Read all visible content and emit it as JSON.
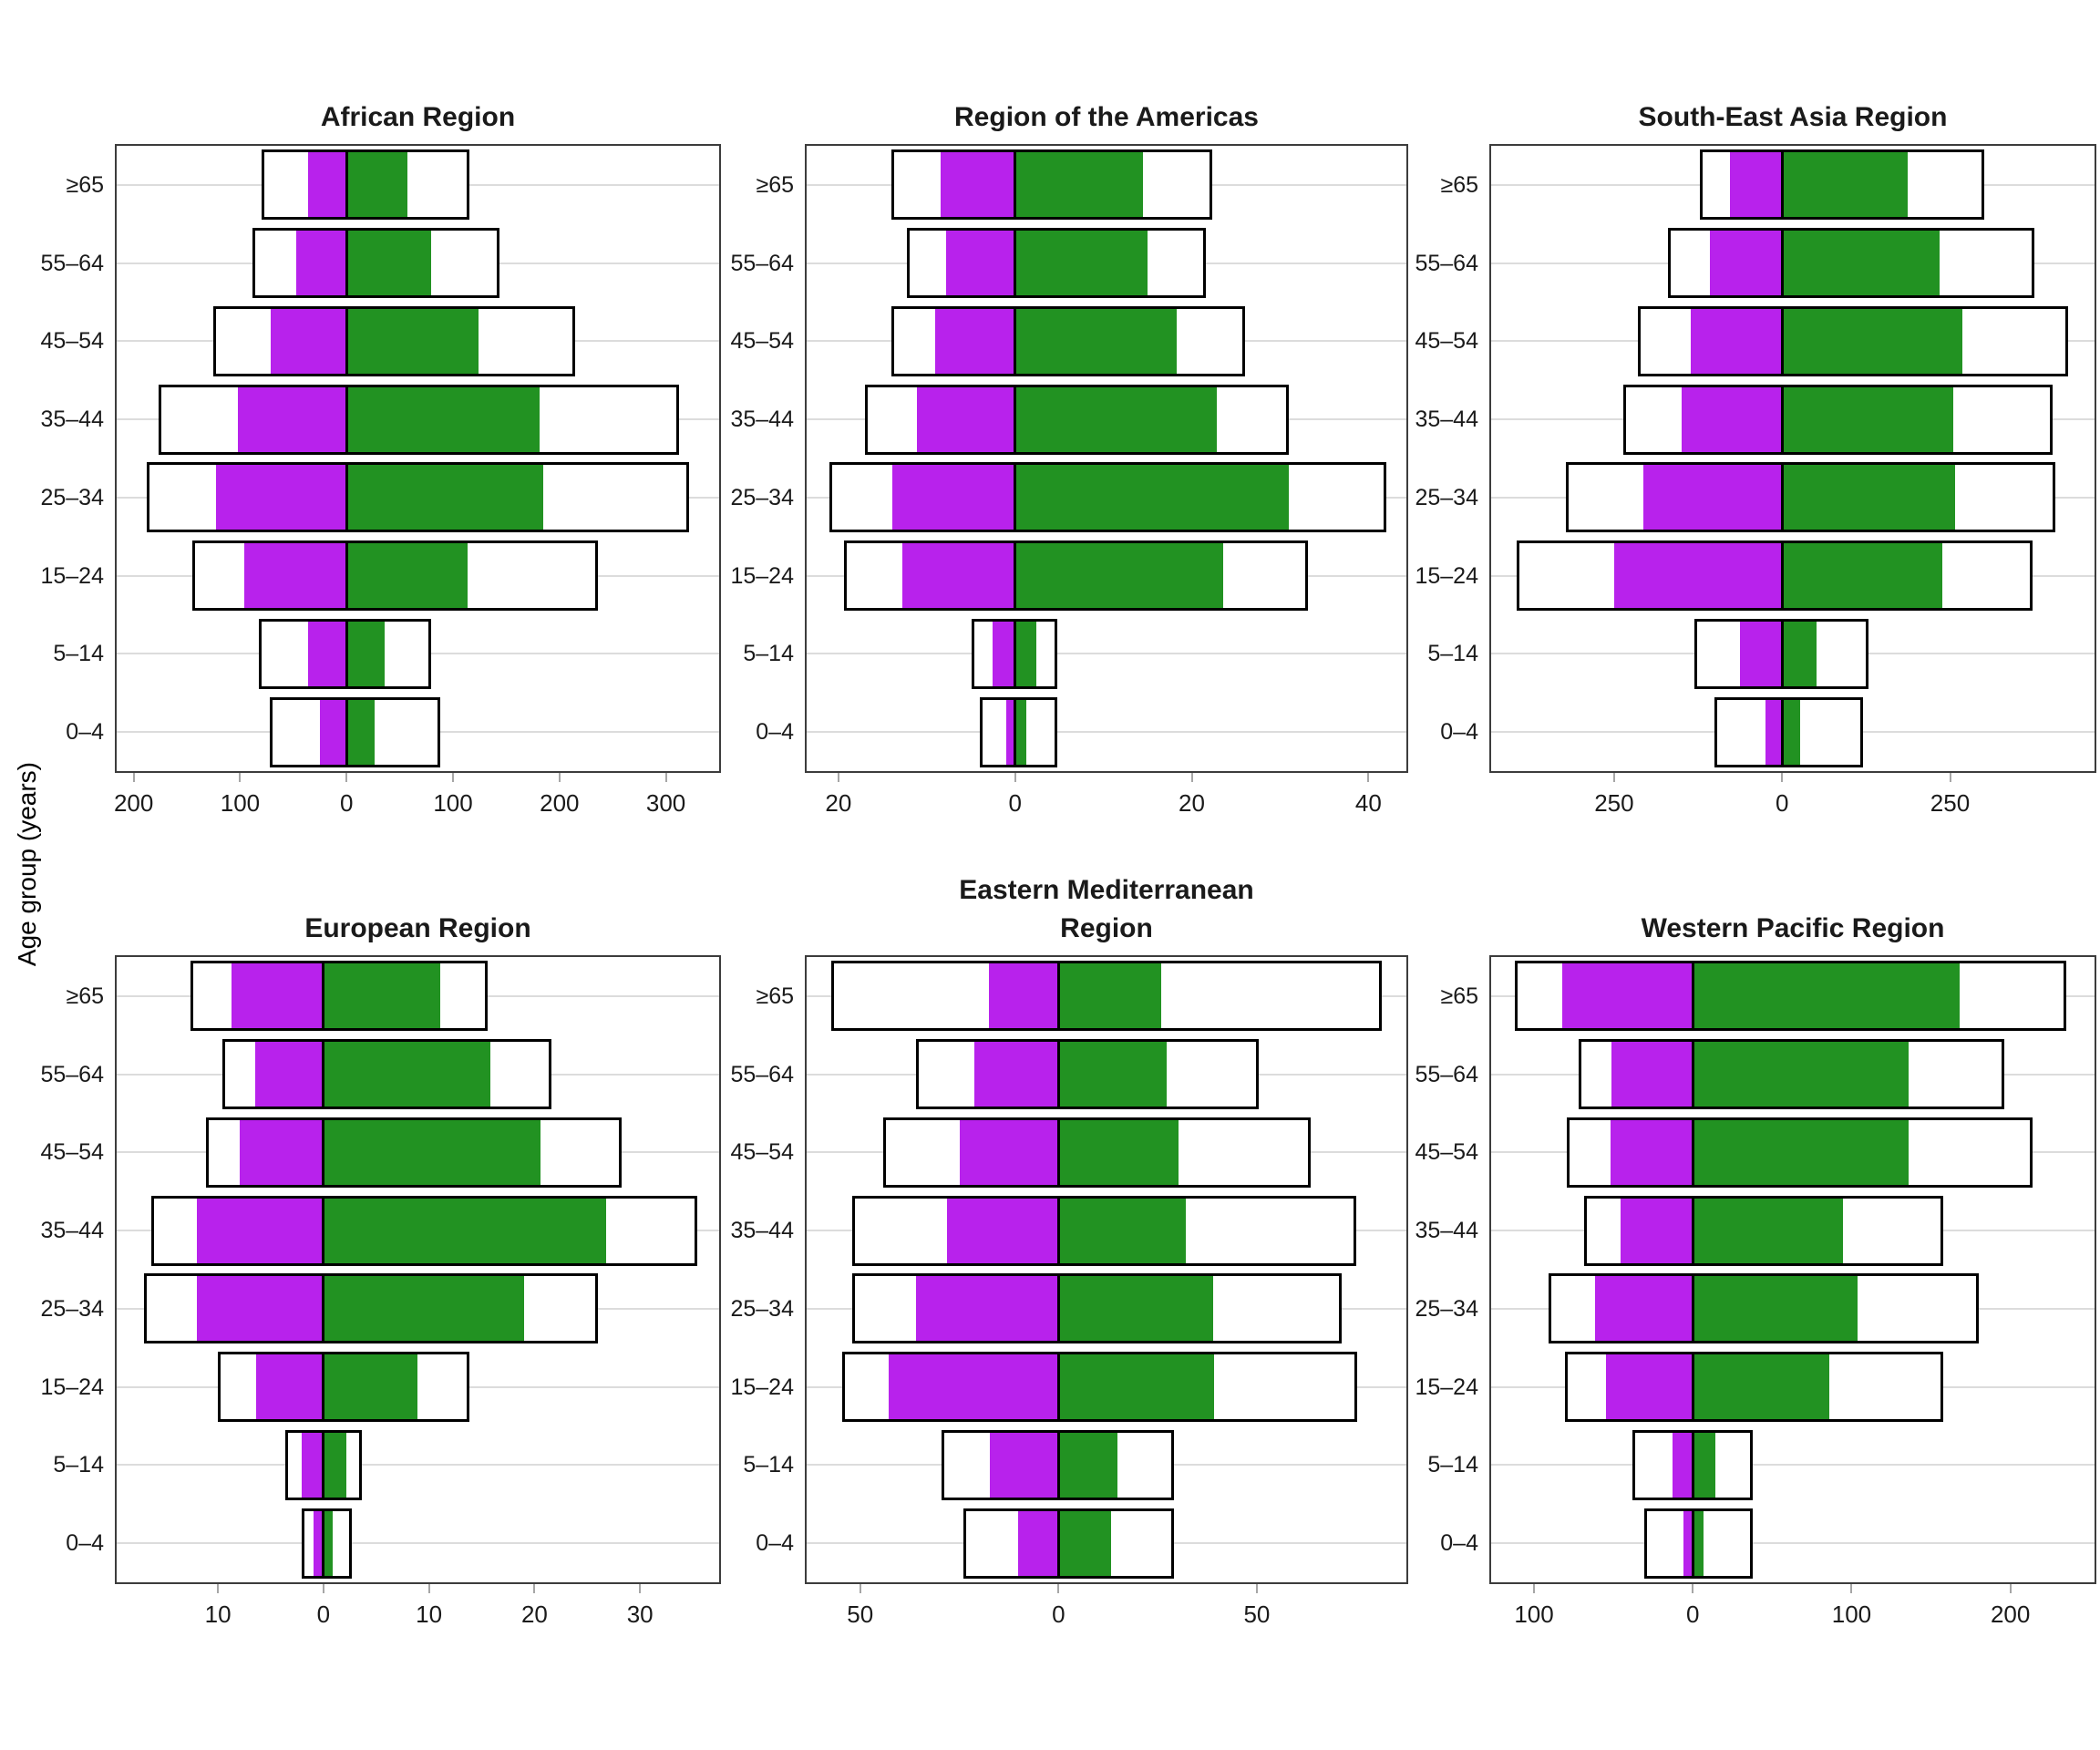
{
  "figure": {
    "y_axis_label": "Age group (years)",
    "age_groups_top_to_bottom": [
      "≥65",
      "55–64",
      "45–54",
      "35–44",
      "25–34",
      "15–24",
      "5–14",
      "0–4"
    ],
    "legend": "none visible"
  },
  "colors": {
    "female_notified": "#B822EC",
    "male_notified": "#229222",
    "estimate_outline": "#000000",
    "panel_border": "#3C3C3C",
    "gridline": "#DCDCDC",
    "tick_mark": "#A6A6A6"
  },
  "chart_data": [
    {
      "type": "bar",
      "subtype": "population-pyramid",
      "title": "African Region",
      "title_lines": [
        "African Region"
      ],
      "orientation": "horizontal",
      "xlim": [
        -216,
        350
      ],
      "x_ticks": [
        {
          "value": -200,
          "label": "200"
        },
        {
          "value": -100,
          "label": "100"
        },
        {
          "value": 0,
          "label": "0"
        },
        {
          "value": 100,
          "label": "100"
        },
        {
          "value": 200,
          "label": "200"
        },
        {
          "value": 300,
          "label": "300"
        }
      ],
      "rows_top_to_bottom": [
        {
          "age": "≥65",
          "est_female": 80,
          "notif_female": 36,
          "notif_male": 57,
          "est_male": 115
        },
        {
          "age": "55–64",
          "est_female": 88,
          "notif_female": 47,
          "notif_male": 79,
          "est_male": 144
        },
        {
          "age": "45–54",
          "est_female": 125,
          "notif_female": 71,
          "notif_male": 124,
          "est_male": 215
        },
        {
          "age": "35–44",
          "est_female": 177,
          "notif_female": 102,
          "notif_male": 181,
          "est_male": 312
        },
        {
          "age": "25–34",
          "est_female": 188,
          "notif_female": 123,
          "notif_male": 185,
          "est_male": 322
        },
        {
          "age": "15–24",
          "est_female": 145,
          "notif_female": 96,
          "notif_male": 114,
          "est_male": 236
        },
        {
          "age": "5–14",
          "est_female": 82,
          "notif_female": 36,
          "notif_male": 36,
          "est_male": 79
        },
        {
          "age": "0–4",
          "est_female": 72,
          "notif_female": 25,
          "notif_male": 26,
          "est_male": 88
        }
      ]
    },
    {
      "type": "bar",
      "subtype": "population-pyramid",
      "title": "Region of the Americas",
      "title_lines": [
        "Region of the Americas"
      ],
      "orientation": "horizontal",
      "xlim": [
        -23.6,
        44.3
      ],
      "x_ticks": [
        {
          "value": -20,
          "label": "20"
        },
        {
          "value": 0,
          "label": "0"
        },
        {
          "value": 20,
          "label": "20"
        },
        {
          "value": 40,
          "label": "40"
        }
      ],
      "rows_top_to_bottom": [
        {
          "age": "≥65",
          "est_female": 14,
          "notif_female": 8.4,
          "notif_male": 14.5,
          "est_male": 22.3
        },
        {
          "age": "55–64",
          "est_female": 12.3,
          "notif_female": 7.8,
          "notif_male": 15,
          "est_male": 21.6
        },
        {
          "age": "45–54",
          "est_female": 14,
          "notif_female": 9.1,
          "notif_male": 18.3,
          "est_male": 26
        },
        {
          "age": "35–44",
          "est_female": 17,
          "notif_female": 11.1,
          "notif_male": 22.8,
          "est_male": 31
        },
        {
          "age": "25–34",
          "est_female": 21,
          "notif_female": 13.9,
          "notif_male": 31,
          "est_male": 42
        },
        {
          "age": "15–24",
          "est_female": 19.4,
          "notif_female": 12.8,
          "notif_male": 23.6,
          "est_male": 33.2
        },
        {
          "age": "5–14",
          "est_female": 4.9,
          "notif_female": 2.5,
          "notif_male": 2.4,
          "est_male": 4.8
        },
        {
          "age": "0–4",
          "est_female": 4,
          "notif_female": 1,
          "notif_male": 1.3,
          "est_male": 4.8
        }
      ]
    },
    {
      "type": "bar",
      "subtype": "population-pyramid",
      "title": "South-East Asia Region",
      "title_lines": [
        "South-East Asia Region"
      ],
      "orientation": "horizontal",
      "xlim": [
        -433,
        465
      ],
      "x_ticks": [
        {
          "value": -250,
          "label": "250"
        },
        {
          "value": 0,
          "label": "0"
        },
        {
          "value": 250,
          "label": "250"
        }
      ],
      "rows_top_to_bottom": [
        {
          "age": "≥65",
          "est_female": 122,
          "notif_female": 78,
          "notif_male": 187,
          "est_male": 301
        },
        {
          "age": "55–64",
          "est_female": 170,
          "notif_female": 107,
          "notif_male": 235,
          "est_male": 375
        },
        {
          "age": "45–54",
          "est_female": 215,
          "notif_female": 136,
          "notif_male": 268,
          "est_male": 425
        },
        {
          "age": "35–44",
          "est_female": 236,
          "notif_female": 149,
          "notif_male": 255,
          "est_male": 403
        },
        {
          "age": "25–34",
          "est_female": 322,
          "notif_female": 206,
          "notif_male": 258,
          "est_male": 407
        },
        {
          "age": "15–24",
          "est_female": 395,
          "notif_female": 250,
          "notif_male": 239,
          "est_male": 373
        },
        {
          "age": "5–14",
          "est_female": 131,
          "notif_female": 62,
          "notif_male": 51,
          "est_male": 129
        },
        {
          "age": "0–4",
          "est_female": 100,
          "notif_female": 25,
          "notif_male": 27,
          "est_male": 120
        }
      ]
    },
    {
      "type": "bar",
      "subtype": "population-pyramid",
      "title": "European Region",
      "title_lines": [
        "European Region"
      ],
      "orientation": "horizontal",
      "xlim": [
        -19.6,
        37.5
      ],
      "x_ticks": [
        {
          "value": -10,
          "label": "10"
        },
        {
          "value": 0,
          "label": "0"
        },
        {
          "value": 10,
          "label": "10"
        },
        {
          "value": 20,
          "label": "20"
        },
        {
          "value": 30,
          "label": "30"
        }
      ],
      "rows_top_to_bottom": [
        {
          "age": "≥65",
          "est_female": 12.6,
          "notif_female": 8.7,
          "notif_male": 11.1,
          "est_male": 15.6
        },
        {
          "age": "55–64",
          "est_female": 9.6,
          "notif_female": 6.5,
          "notif_male": 15.8,
          "est_male": 21.6
        },
        {
          "age": "45–54",
          "est_female": 11.1,
          "notif_female": 7.9,
          "notif_male": 20.6,
          "est_male": 28.3
        },
        {
          "age": "35–44",
          "est_female": 16.3,
          "notif_female": 12,
          "notif_male": 26.8,
          "est_male": 35.4
        },
        {
          "age": "25–34",
          "est_female": 17,
          "notif_female": 12,
          "notif_male": 19,
          "est_male": 26
        },
        {
          "age": "15–24",
          "est_female": 10,
          "notif_female": 6.4,
          "notif_male": 8.9,
          "est_male": 13.8
        },
        {
          "age": "5–14",
          "est_female": 3.6,
          "notif_female": 2.1,
          "notif_male": 2.2,
          "est_male": 3.6
        },
        {
          "age": "0–4",
          "est_female": 2.1,
          "notif_female": 0.95,
          "notif_male": 0.9,
          "est_male": 2.7
        }
      ]
    },
    {
      "type": "bar",
      "subtype": "population-pyramid",
      "title": "Eastern Mediterranean Region",
      "title_lines": [
        "Eastern Mediterranean",
        "Region"
      ],
      "orientation": "horizontal",
      "xlim": [
        -63.5,
        87.7
      ],
      "x_ticks": [
        {
          "value": -50,
          "label": "50"
        },
        {
          "value": 0,
          "label": "0"
        },
        {
          "value": 50,
          "label": "50"
        }
      ],
      "rows_top_to_bottom": [
        {
          "age": "≥65",
          "est_female": 57.3,
          "notif_female": 17.6,
          "notif_male": 25.9,
          "est_male": 81.5
        },
        {
          "age": "55–64",
          "est_female": 35.9,
          "notif_female": 21.2,
          "notif_male": 27.2,
          "est_male": 50.4
        },
        {
          "age": "45–54",
          "est_female": 44.2,
          "notif_female": 24.8,
          "notif_male": 30.2,
          "est_male": 63.6
        },
        {
          "age": "35–44",
          "est_female": 52,
          "notif_female": 28.2,
          "notif_male": 32.1,
          "est_male": 75
        },
        {
          "age": "25–34",
          "est_female": 52,
          "notif_female": 36,
          "notif_male": 39,
          "est_male": 71.4
        },
        {
          "age": "15–24",
          "est_female": 54.5,
          "notif_female": 42.9,
          "notif_male": 39.3,
          "est_male": 75.3
        },
        {
          "age": "5–14",
          "est_female": 29.5,
          "notif_female": 17.3,
          "notif_male": 14.8,
          "est_male": 29
        },
        {
          "age": "0–4",
          "est_female": 24,
          "notif_female": 10.3,
          "notif_male": 13.2,
          "est_male": 29
        }
      ]
    },
    {
      "type": "bar",
      "subtype": "population-pyramid",
      "title": "Western Pacific Region",
      "title_lines": [
        "Western Pacific Region"
      ],
      "orientation": "horizontal",
      "xlim": [
        -127,
        253
      ],
      "x_ticks": [
        {
          "value": -100,
          "label": "100"
        },
        {
          "value": 0,
          "label": "0"
        },
        {
          "value": 100,
          "label": "100"
        },
        {
          "value": 200,
          "label": "200"
        }
      ],
      "rows_top_to_bottom": [
        {
          "age": "≥65",
          "est_female": 112,
          "notif_female": 82,
          "notif_male": 168,
          "est_male": 235
        },
        {
          "age": "55–64",
          "est_female": 72,
          "notif_female": 51,
          "notif_male": 136,
          "est_male": 196
        },
        {
          "age": "45–54",
          "est_female": 79.6,
          "notif_female": 51.7,
          "notif_male": 135.8,
          "est_male": 214
        },
        {
          "age": "35–44",
          "est_female": 68.4,
          "notif_female": 45.3,
          "notif_male": 94.5,
          "est_male": 158
        },
        {
          "age": "25–34",
          "est_female": 90.8,
          "notif_female": 61.7,
          "notif_male": 104,
          "est_male": 180
        },
        {
          "age": "15–24",
          "est_female": 80.3,
          "notif_female": 54.7,
          "notif_male": 85.8,
          "est_male": 158
        },
        {
          "age": "5–14",
          "est_female": 37.8,
          "notif_female": 12.9,
          "notif_male": 14.4,
          "est_male": 37.8
        },
        {
          "age": "0–4",
          "est_female": 30.6,
          "notif_female": 5.7,
          "notif_male": 7,
          "est_male": 37.8
        }
      ]
    }
  ]
}
